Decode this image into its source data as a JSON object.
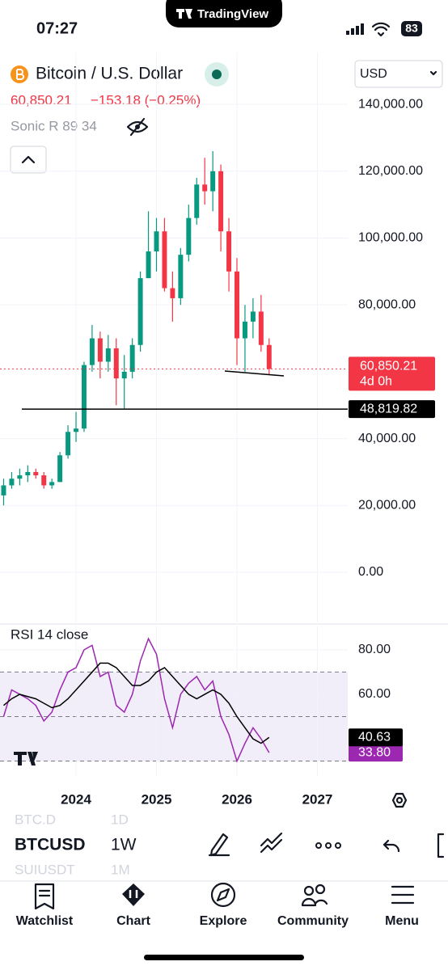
{
  "status_bar": {
    "time": "07:27",
    "app": "TradingView",
    "battery": "83"
  },
  "header": {
    "title": "Bitcoin / U.S. Dollar",
    "price": "60,850.21",
    "change": "−153.18 (−0.25%)",
    "indicator": "Sonic R 89 34",
    "currency": "USD"
  },
  "chart_data": [
    {
      "type": "candlestick",
      "x": [
        2023.1,
        2023.2,
        2023.3,
        2023.4,
        2023.5,
        2023.6,
        2023.7,
        2023.8,
        2023.9,
        2024.0,
        2024.1,
        2024.2,
        2024.3,
        2024.4,
        2024.5,
        2024.6,
        2024.7,
        2024.8,
        2024.9,
        2025.0,
        2025.1,
        2025.2,
        2025.3,
        2025.4,
        2025.5,
        2025.6,
        2025.7,
        2025.8,
        2025.9,
        2026.0,
        2026.1,
        2026.2,
        2026.3,
        2026.4
      ],
      "open": [
        23000,
        26000,
        28000,
        29000,
        30000,
        29000,
        26000,
        27000,
        35000,
        42000,
        43000,
        62000,
        70000,
        63000,
        67000,
        58000,
        60000,
        68000,
        88000,
        96000,
        102000,
        85000,
        82000,
        95000,
        106000,
        116000,
        114000,
        120000,
        102000,
        90000,
        70000,
        75000,
        78000,
        68000
      ],
      "high": [
        28000,
        30000,
        31000,
        32000,
        31000,
        30000,
        28000,
        36000,
        44000,
        48000,
        63000,
        74000,
        72000,
        71000,
        70000,
        65000,
        70000,
        90000,
        108000,
        106000,
        106000,
        90000,
        97000,
        110000,
        118000,
        124000,
        126000,
        122000,
        106000,
        94000,
        80000,
        82000,
        83000,
        70000
      ],
      "low": [
        20000,
        25000,
        26000,
        27000,
        28000,
        25000,
        25000,
        27000,
        34000,
        39000,
        42000,
        60000,
        58000,
        60000,
        50000,
        49000,
        58000,
        66000,
        88000,
        90000,
        84000,
        75000,
        80000,
        93000,
        104000,
        110000,
        108000,
        96000,
        84000,
        62000,
        60000,
        70000,
        66000,
        59000
      ],
      "close": [
        26000,
        28000,
        29000,
        30000,
        29000,
        26000,
        27000,
        35000,
        42000,
        43000,
        62000,
        70000,
        63000,
        67000,
        58000,
        60000,
        68000,
        88000,
        96000,
        102000,
        85000,
        82000,
        95000,
        106000,
        116000,
        114000,
        120000,
        102000,
        90000,
        70000,
        75000,
        78000,
        68000,
        60850.21
      ],
      "up_color": "#089981",
      "down_color": "#f23645",
      "xlim": [
        2023.055,
        2027.377
      ],
      "ylim": [
        -15000,
        155500
      ],
      "yticks": [
        {
          "value": 140000,
          "label": "140,000.00"
        },
        {
          "value": 120000,
          "label": "120,000.00"
        },
        {
          "value": 100000,
          "label": "100,000.00"
        },
        {
          "value": 80000,
          "label": "80,000.00"
        },
        {
          "value": 40000,
          "label": "40,000.00"
        },
        {
          "value": 20000,
          "label": "20,000.00"
        },
        {
          "value": 0,
          "label": "0.00"
        }
      ],
      "grid": true,
      "price_line": {
        "value": 60850.21,
        "label": "60,850.21",
        "countdown": "4d 0h",
        "color": "#f23645"
      },
      "horizontal_line": {
        "value": 48819.82,
        "label": "48,819.82",
        "color": "#000000"
      }
    },
    {
      "type": "line",
      "title": "RSI 14 close",
      "x": [
        2023.1,
        2023.2,
        2023.3,
        2023.4,
        2023.5,
        2023.6,
        2023.7,
        2023.8,
        2023.9,
        2024.0,
        2024.1,
        2024.2,
        2024.3,
        2024.4,
        2024.5,
        2024.6,
        2024.7,
        2024.8,
        2024.9,
        2025.0,
        2025.1,
        2025.2,
        2025.3,
        2025.4,
        2025.5,
        2025.6,
        2025.7,
        2025.8,
        2025.9,
        2026.0,
        2026.1,
        2026.2,
        2026.3,
        2026.4
      ],
      "xlim": [
        2023.055,
        2027.377
      ],
      "xticks": [
        2024,
        2025,
        2026,
        2027
      ],
      "ylim": [
        23.3,
        90.5
      ],
      "yticks": [
        {
          "value": 80,
          "label": "80.00"
        },
        {
          "value": 60,
          "label": "60.00"
        }
      ],
      "band": [
        30,
        70
      ],
      "band_color": "#7e57c2",
      "levels": [
        70,
        50,
        30
      ],
      "series": [
        {
          "color": "#9c27b0",
          "values": [
            50,
            62,
            60,
            58,
            55,
            48,
            52,
            62,
            70,
            72,
            80,
            82,
            68,
            70,
            55,
            52,
            60,
            75,
            85,
            78,
            58,
            45,
            60,
            65,
            68,
            62,
            66,
            50,
            42,
            30,
            38,
            45,
            40,
            33.8
          ],
          "last_label": "33.80"
        },
        {
          "color": "#000000",
          "values": [
            55,
            58,
            60,
            59,
            58,
            56,
            54,
            55,
            58,
            62,
            66,
            70,
            74,
            74,
            72,
            68,
            64,
            64,
            66,
            70,
            72,
            68,
            64,
            60,
            58,
            60,
            62,
            60,
            56,
            50,
            45,
            40,
            38,
            40.63
          ],
          "last_label": "40.63"
        }
      ]
    }
  ],
  "toolbar": {
    "symbols": [
      {
        "symbol": "BTC.D",
        "interval": "1D"
      },
      {
        "symbol": "BTCUSD",
        "interval": "1W"
      },
      {
        "symbol": "SUIUSDT",
        "interval": "1M"
      }
    ]
  },
  "nav": [
    "Watchlist",
    "Chart",
    "Explore",
    "Community",
    "Menu"
  ]
}
